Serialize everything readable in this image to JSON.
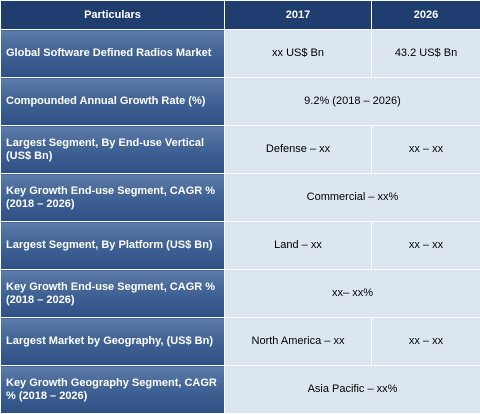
{
  "header": {
    "col1": "Particulars",
    "col2": "2017",
    "col3": "2026"
  },
  "rows": [
    {
      "label": "Global Software Defined Radios Market",
      "v2017": "xx US$ Bn",
      "v2026": "43.2 US$ Bn"
    },
    {
      "label": "Compounded Annual Growth Rate (%)",
      "span": "9.2% (2018 – 2026)"
    },
    {
      "label": "Largest Segment, By End-use Vertical (US$ Bn)",
      "v2017": "Defense – xx",
      "v2026": "xx – xx"
    },
    {
      "label": "Key Growth End-use Segment, CAGR % (2018 – 2026)",
      "span": "Commercial – xx%"
    },
    {
      "label": "Largest Segment, By Platform (US$ Bn)",
      "v2017": "Land – xx",
      "v2026": "xx – xx"
    },
    {
      "label": "Key Growth End-use Segment, CAGR % (2018 – 2026)",
      "span": "xx– xx%"
    },
    {
      "label": "Largest Market by Geography, (US$ Bn)",
      "v2017": "North America – xx",
      "v2026": "xx – xx"
    },
    {
      "label": "Key Growth Geography Segment, CAGR % (2018 – 2026)",
      "span": "Asia Pacific – xx%"
    }
  ]
}
